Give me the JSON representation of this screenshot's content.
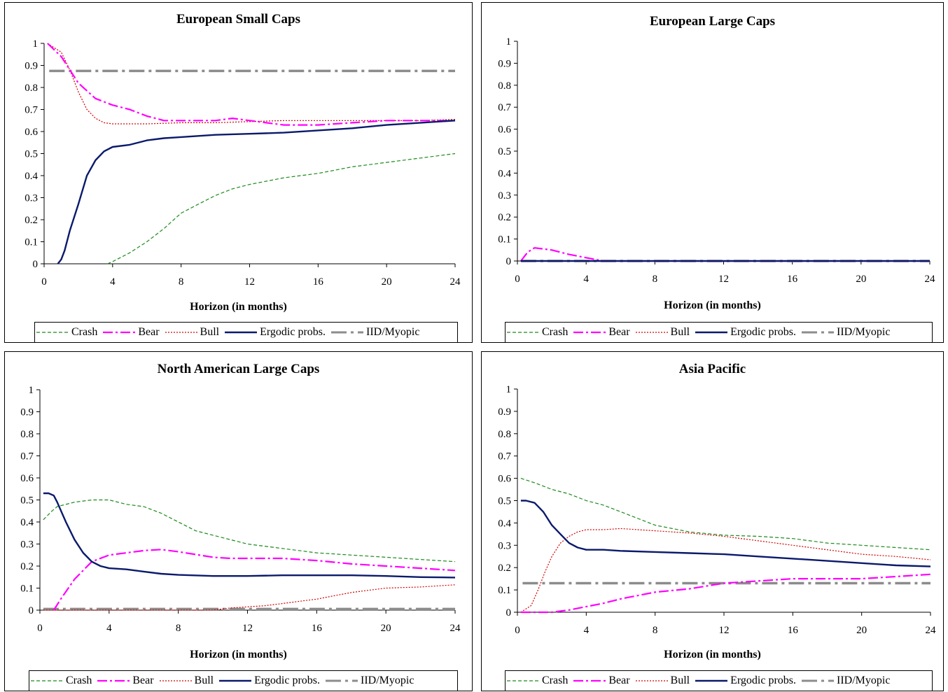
{
  "colors": {
    "Crash": "#1b8a1b",
    "Bear": "#ff00ff",
    "Bull": "#d00000",
    "Ergodic probs.": "#0a1a6b",
    "IID/Myopic": "#8c8c8c"
  },
  "chart_data": [
    {
      "type": "line",
      "title": "European Small Caps",
      "xlabel": "Horizon (in months)",
      "ylabel": "",
      "xlim": [
        0,
        24
      ],
      "ylim": [
        0,
        1
      ],
      "xticks": [
        "0",
        "4",
        "8",
        "12",
        "16",
        "20",
        "24"
      ],
      "yticks": [
        "0",
        "0.1",
        "0.2",
        "0.3",
        "0.4",
        "0.5",
        "0.6",
        "0.7",
        "0.8",
        "0.9",
        "1"
      ],
      "legend": [
        "Crash",
        "Bear",
        "Bull",
        "Ergodic probs.",
        "IID/Myopic"
      ],
      "series": [
        {
          "name": "Crash",
          "x": [
            3.7,
            4,
            5,
            6,
            7,
            8,
            9,
            10,
            11,
            12,
            14,
            16,
            18,
            20,
            22,
            24
          ],
          "y": [
            0,
            0.01,
            0.05,
            0.1,
            0.16,
            0.23,
            0.27,
            0.31,
            0.34,
            0.36,
            0.39,
            0.41,
            0.44,
            0.46,
            0.48,
            0.5
          ]
        },
        {
          "name": "Bear",
          "x": [
            0.2,
            1,
            2,
            3,
            4,
            5,
            6,
            7,
            8,
            10,
            11,
            12,
            14,
            16,
            18,
            20,
            22,
            24
          ],
          "y": [
            1,
            0.94,
            0.82,
            0.75,
            0.72,
            0.7,
            0.67,
            0.65,
            0.65,
            0.65,
            0.66,
            0.65,
            0.63,
            0.63,
            0.64,
            0.65,
            0.65,
            0.65
          ]
        },
        {
          "name": "Bull",
          "x": [
            0.2,
            1,
            1.5,
            2,
            2.5,
            3,
            3.5,
            4,
            6,
            8,
            10,
            12,
            14,
            16,
            18,
            20,
            22,
            24
          ],
          "y": [
            1,
            0.96,
            0.88,
            0.78,
            0.7,
            0.66,
            0.64,
            0.635,
            0.635,
            0.64,
            0.64,
            0.645,
            0.65,
            0.65,
            0.65,
            0.65,
            0.65,
            0.655
          ]
        },
        {
          "name": "Ergodic probs.",
          "x": [
            0.8,
            1,
            1.2,
            1.5,
            2,
            2.5,
            3,
            3.5,
            4,
            5,
            6,
            7,
            8,
            10,
            12,
            14,
            16,
            18,
            20,
            22,
            24
          ],
          "y": [
            0,
            0.02,
            0.06,
            0.15,
            0.27,
            0.4,
            0.47,
            0.51,
            0.53,
            0.54,
            0.56,
            0.57,
            0.575,
            0.585,
            0.59,
            0.595,
            0.605,
            0.615,
            0.63,
            0.64,
            0.65
          ]
        },
        {
          "name": "IID/Myopic",
          "x": [
            0.3,
            24
          ],
          "y": [
            0.875,
            0.875
          ]
        }
      ]
    },
    {
      "type": "line",
      "title": "European Large Caps",
      "xlabel": "Horizon (in months)",
      "ylabel": "",
      "xlim": [
        0,
        24
      ],
      "ylim": [
        0,
        1
      ],
      "xticks": [
        "0",
        "4",
        "8",
        "12",
        "16",
        "20",
        "24"
      ],
      "yticks": [
        "0",
        "0.1",
        "0.2",
        "0.3",
        "0.4",
        "0.5",
        "0.6",
        "0.7",
        "0.8",
        "0.9",
        "1"
      ],
      "legend": [
        "Crash",
        "Bear",
        "Bull",
        "Ergodic probs.",
        "IID/Myopic"
      ],
      "series": [
        {
          "name": "Crash",
          "x": [
            0.2,
            24
          ],
          "y": [
            0,
            0
          ]
        },
        {
          "name": "Bear",
          "x": [
            0.2,
            0.6,
            1,
            2,
            3,
            4,
            5,
            24
          ],
          "y": [
            0,
            0.04,
            0.06,
            0.05,
            0.03,
            0.015,
            0,
            0
          ]
        },
        {
          "name": "Bull",
          "x": [
            0.2,
            24
          ],
          "y": [
            0,
            0
          ]
        },
        {
          "name": "Ergodic probs.",
          "x": [
            0.2,
            24
          ],
          "y": [
            0,
            0
          ]
        },
        {
          "name": "IID/Myopic",
          "x": [
            0.2,
            24
          ],
          "y": [
            0,
            0
          ]
        }
      ]
    },
    {
      "type": "line",
      "title": "North American Large Caps",
      "xlabel": "Horizon (in months)",
      "ylabel": "",
      "xlim": [
        0,
        24
      ],
      "ylim": [
        0,
        1
      ],
      "xticks": [
        "0",
        "4",
        "8",
        "12",
        "16",
        "20",
        "24"
      ],
      "yticks": [
        "0",
        "0.1",
        "0.2",
        "0.3",
        "0.4",
        "0.5",
        "0.6",
        "0.7",
        "0.8",
        "0.9",
        "1"
      ],
      "legend": [
        "Crash",
        "Bear",
        "Bull",
        "Ergodic probs.",
        "IID/Myopic"
      ],
      "series": [
        {
          "name": "Crash",
          "x": [
            0.2,
            0.7,
            1,
            2,
            3,
            3.5,
            4,
            5,
            6,
            7,
            8,
            9,
            10,
            11,
            12,
            14,
            16,
            18,
            20,
            22,
            24
          ],
          "y": [
            0.41,
            0.45,
            0.47,
            0.49,
            0.5,
            0.5,
            0.5,
            0.48,
            0.47,
            0.44,
            0.4,
            0.36,
            0.34,
            0.32,
            0.3,
            0.28,
            0.26,
            0.25,
            0.24,
            0.23,
            0.22
          ]
        },
        {
          "name": "Bear",
          "x": [
            0.8,
            1.2,
            2,
            3,
            4,
            5,
            6,
            7,
            8,
            10,
            11,
            12,
            14,
            16,
            18,
            20,
            22,
            24
          ],
          "y": [
            0,
            0.05,
            0.14,
            0.22,
            0.25,
            0.26,
            0.27,
            0.275,
            0.265,
            0.24,
            0.235,
            0.235,
            0.235,
            0.225,
            0.21,
            0.2,
            0.19,
            0.18
          ]
        },
        {
          "name": "Bull",
          "x": [
            0.2,
            4,
            10,
            11,
            12,
            13,
            14,
            15,
            16,
            17,
            18,
            19,
            20,
            22,
            24
          ],
          "y": [
            0,
            0,
            0,
            0.01,
            0.015,
            0.02,
            0.03,
            0.04,
            0.05,
            0.065,
            0.08,
            0.09,
            0.1,
            0.105,
            0.115
          ]
        },
        {
          "name": "Ergodic probs.",
          "x": [
            0.2,
            0.5,
            0.8,
            1,
            1.5,
            2,
            2.5,
            3,
            3.5,
            4,
            5,
            6,
            7,
            8,
            10,
            12,
            14,
            16,
            18,
            20,
            22,
            24
          ],
          "y": [
            0.53,
            0.53,
            0.52,
            0.49,
            0.4,
            0.32,
            0.26,
            0.22,
            0.2,
            0.19,
            0.185,
            0.175,
            0.165,
            0.16,
            0.155,
            0.155,
            0.158,
            0.158,
            0.158,
            0.155,
            0.15,
            0.148
          ]
        },
        {
          "name": "IID/Myopic",
          "x": [
            0.2,
            24
          ],
          "y": [
            0.005,
            0.005
          ]
        }
      ]
    },
    {
      "type": "line",
      "title": "Asia Pacific",
      "xlabel": "Horizon (in months)",
      "ylabel": "",
      "xlim": [
        0,
        24
      ],
      "ylim": [
        0,
        1
      ],
      "xticks": [
        "0",
        "4",
        "8",
        "12",
        "16",
        "20",
        "24"
      ],
      "yticks": [
        "0",
        "0.1",
        "0.2",
        "0.3",
        "0.4",
        "0.5",
        "0.6",
        "0.7",
        "0.8",
        "0.9",
        "1"
      ],
      "legend": [
        "Crash",
        "Bear",
        "Bull",
        "Ergodic probs.",
        "IID/Myopic"
      ],
      "series": [
        {
          "name": "Crash",
          "x": [
            0.2,
            1,
            2,
            3,
            4,
            5,
            6,
            7,
            8,
            10,
            12,
            14,
            16,
            18,
            20,
            22,
            24
          ],
          "y": [
            0.6,
            0.58,
            0.55,
            0.53,
            0.5,
            0.48,
            0.45,
            0.42,
            0.39,
            0.36,
            0.345,
            0.34,
            0.33,
            0.31,
            0.3,
            0.29,
            0.28
          ]
        },
        {
          "name": "Bear",
          "x": [
            0.2,
            1,
            2,
            3,
            4,
            5,
            6,
            8,
            10,
            12,
            14,
            16,
            18,
            20,
            22,
            24
          ],
          "y": [
            0,
            0,
            0,
            0.01,
            0.025,
            0.04,
            0.06,
            0.09,
            0.105,
            0.13,
            0.14,
            0.15,
            0.15,
            0.15,
            0.16,
            0.17
          ]
        },
        {
          "name": "Bull",
          "x": [
            0.2,
            0.8,
            1.2,
            1.6,
            2,
            2.5,
            3,
            3.5,
            4,
            5,
            6,
            8,
            10,
            12,
            14,
            16,
            18,
            20,
            22,
            24
          ],
          "y": [
            0,
            0.03,
            0.1,
            0.18,
            0.25,
            0.31,
            0.34,
            0.36,
            0.37,
            0.37,
            0.375,
            0.365,
            0.355,
            0.34,
            0.32,
            0.3,
            0.28,
            0.26,
            0.25,
            0.235
          ]
        },
        {
          "name": "Ergodic probs.",
          "x": [
            0.2,
            0.5,
            1,
            1.5,
            2,
            2.5,
            3,
            3.5,
            4,
            5,
            6,
            8,
            10,
            12,
            14,
            16,
            18,
            20,
            22,
            24
          ],
          "y": [
            0.5,
            0.5,
            0.49,
            0.45,
            0.39,
            0.35,
            0.31,
            0.29,
            0.28,
            0.28,
            0.275,
            0.27,
            0.265,
            0.26,
            0.25,
            0.24,
            0.23,
            0.22,
            0.21,
            0.205
          ]
        },
        {
          "name": "IID/Myopic",
          "x": [
            0.3,
            24
          ],
          "y": [
            0.13,
            0.13
          ]
        }
      ]
    }
  ]
}
